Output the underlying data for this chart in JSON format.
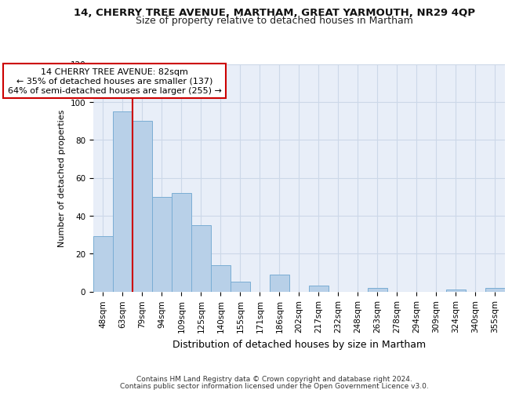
{
  "title": "14, CHERRY TREE AVENUE, MARTHAM, GREAT YARMOUTH, NR29 4QP",
  "subtitle": "Size of property relative to detached houses in Martham",
  "xlabel": "Distribution of detached houses by size in Martham",
  "ylabel": "Number of detached properties",
  "categories": [
    "48sqm",
    "63sqm",
    "79sqm",
    "94sqm",
    "109sqm",
    "125sqm",
    "140sqm",
    "155sqm",
    "171sqm",
    "186sqm",
    "202sqm",
    "217sqm",
    "232sqm",
    "248sqm",
    "263sqm",
    "278sqm",
    "294sqm",
    "309sqm",
    "324sqm",
    "340sqm",
    "355sqm"
  ],
  "values": [
    29,
    95,
    90,
    50,
    52,
    35,
    14,
    5,
    0,
    9,
    0,
    3,
    0,
    0,
    2,
    0,
    0,
    0,
    1,
    0,
    2
  ],
  "bar_color": "#b8d0e8",
  "bar_edge_color": "#7aadd4",
  "annotation_text": "14 CHERRY TREE AVENUE: 82sqm\n← 35% of detached houses are smaller (137)\n64% of semi-detached houses are larger (255) →",
  "annotation_box_color": "#ffffff",
  "annotation_box_edge": "#cc0000",
  "ylim": [
    0,
    120
  ],
  "yticks": [
    0,
    20,
    40,
    60,
    80,
    100,
    120
  ],
  "grid_color": "#ccd8e8",
  "background_color": "#e8eef8",
  "footer1": "Contains HM Land Registry data © Crown copyright and database right 2024.",
  "footer2": "Contains public sector information licensed under the Open Government Licence v3.0.",
  "red_line_color": "#cc0000",
  "red_line_x": 2.0,
  "title_fontsize": 9.5,
  "subtitle_fontsize": 9,
  "annotation_fontsize": 8,
  "ylabel_fontsize": 8,
  "xlabel_fontsize": 9,
  "tick_fontsize": 7.5,
  "footer_fontsize": 6.5
}
